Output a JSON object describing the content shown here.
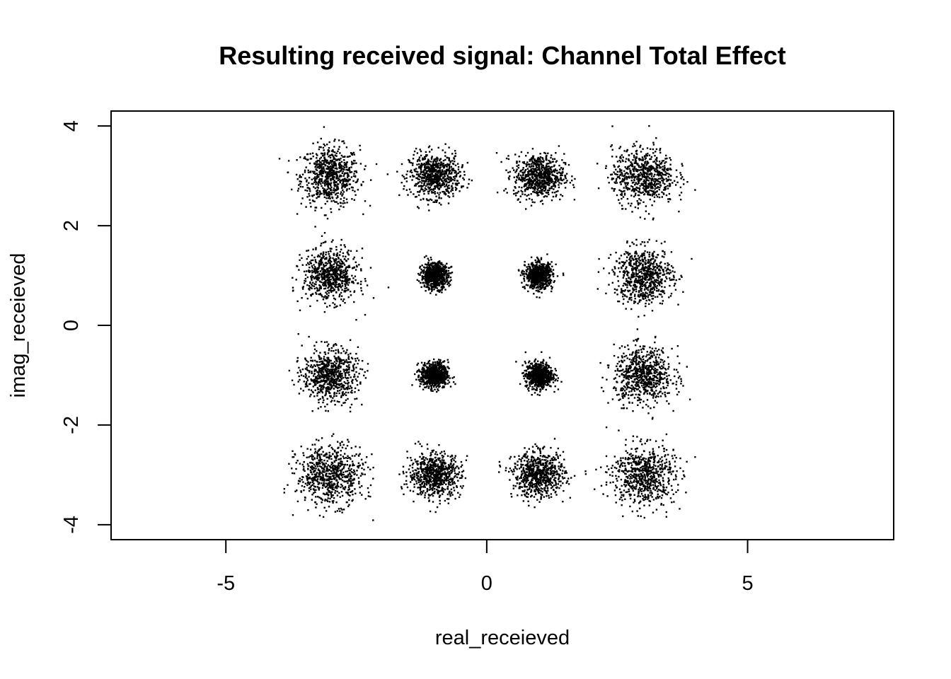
{
  "chart_data": {
    "type": "scatter",
    "title": "Resulting received signal: Channel Total Effect",
    "xlabel": "real_receieved",
    "ylabel": "imag_receieved",
    "xlim": [
      -7.2,
      7.8
    ],
    "ylim": [
      -4.3,
      4.3
    ],
    "x_ticks": [
      -5,
      0,
      5
    ],
    "y_ticks": [
      -4,
      -2,
      0,
      2,
      4
    ],
    "x_tick_labels": [
      "-5",
      "0",
      "5"
    ],
    "y_tick_labels": [
      "-4",
      "-2",
      "0",
      "2",
      "4"
    ],
    "grid": false,
    "legend": "none",
    "point_color": "#000000",
    "clusters": [
      {
        "center": [
          -3,
          3
        ],
        "spread": [
          0.28,
          0.3
        ],
        "points": 700
      },
      {
        "center": [
          -1,
          3
        ],
        "spread": [
          0.24,
          0.22
        ],
        "points": 700
      },
      {
        "center": [
          1,
          3
        ],
        "spread": [
          0.24,
          0.22
        ],
        "points": 700
      },
      {
        "center": [
          3,
          3
        ],
        "spread": [
          0.3,
          0.28
        ],
        "points": 700
      },
      {
        "center": [
          -3,
          1
        ],
        "spread": [
          0.26,
          0.26
        ],
        "points": 700
      },
      {
        "center": [
          -1,
          1
        ],
        "spread": [
          0.13,
          0.13
        ],
        "points": 700
      },
      {
        "center": [
          1,
          1
        ],
        "spread": [
          0.13,
          0.13
        ],
        "points": 700
      },
      {
        "center": [
          3,
          1
        ],
        "spread": [
          0.28,
          0.28
        ],
        "points": 700
      },
      {
        "center": [
          -3,
          -1
        ],
        "spread": [
          0.26,
          0.26
        ],
        "points": 700
      },
      {
        "center": [
          -1,
          -1
        ],
        "spread": [
          0.13,
          0.13
        ],
        "points": 700
      },
      {
        "center": [
          1,
          -1
        ],
        "spread": [
          0.13,
          0.13
        ],
        "points": 700
      },
      {
        "center": [
          3,
          -1
        ],
        "spread": [
          0.28,
          0.28
        ],
        "points": 700
      },
      {
        "center": [
          -3,
          -3
        ],
        "spread": [
          0.32,
          0.3
        ],
        "points": 700
      },
      {
        "center": [
          -1,
          -3
        ],
        "spread": [
          0.25,
          0.22
        ],
        "points": 700
      },
      {
        "center": [
          1,
          -3
        ],
        "spread": [
          0.25,
          0.22
        ],
        "points": 700
      },
      {
        "center": [
          3,
          -3
        ],
        "spread": [
          0.3,
          0.3
        ],
        "points": 700
      }
    ]
  }
}
